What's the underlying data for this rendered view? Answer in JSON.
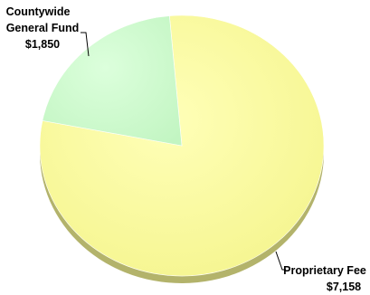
{
  "chart_data": {
    "type": "pie",
    "title": "",
    "slices": [
      {
        "label_lines": [
          "Countywide",
          "General Fund"
        ],
        "value_label": "$1,850",
        "value": 1850,
        "color": "#ccffcc",
        "shadow_color": "#8fb48f"
      },
      {
        "label_lines": [
          "Proprietary Fee"
        ],
        "value_label": "$7,158",
        "value": 7158,
        "color": "#ffff99",
        "shadow_color": "#b3b36b"
      }
    ],
    "legend": "none",
    "style": "3d-shadow"
  }
}
